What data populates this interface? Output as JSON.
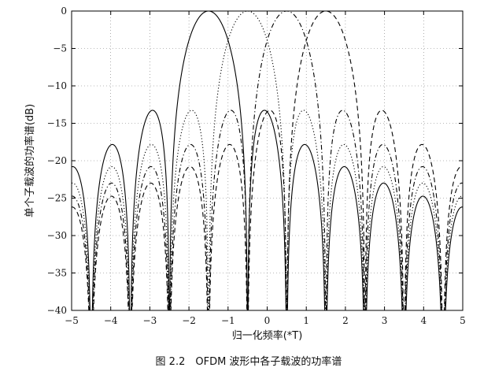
{
  "chart_data": {
    "type": "line",
    "title": "",
    "xlabel": "归一化频率(*T)",
    "ylabel": "单个子载波的功率谱(dB)",
    "caption": "图 2.2　OFDM 波形中各子载波的功率谱",
    "xlim": [
      -5,
      5
    ],
    "ylim": [
      -40,
      0
    ],
    "x_ticks": [
      -5,
      -4,
      -3,
      -2,
      -1,
      0,
      1,
      2,
      3,
      4,
      5
    ],
    "y_ticks": [
      0,
      -5,
      -10,
      -15,
      -20,
      -25,
      -30,
      -35,
      -40
    ],
    "grid": true,
    "function": "10*log10(sinc^2(x - center)), clipped at -40 dB",
    "series": [
      {
        "center": -1.5,
        "style": "solid",
        "color": "#000000"
      },
      {
        "center": -0.5,
        "style": "dotted",
        "color": "#000000"
      },
      {
        "center": 0.5,
        "style": "dashdot",
        "color": "#000000"
      },
      {
        "center": 1.5,
        "style": "dashed",
        "color": "#000000"
      }
    ]
  }
}
